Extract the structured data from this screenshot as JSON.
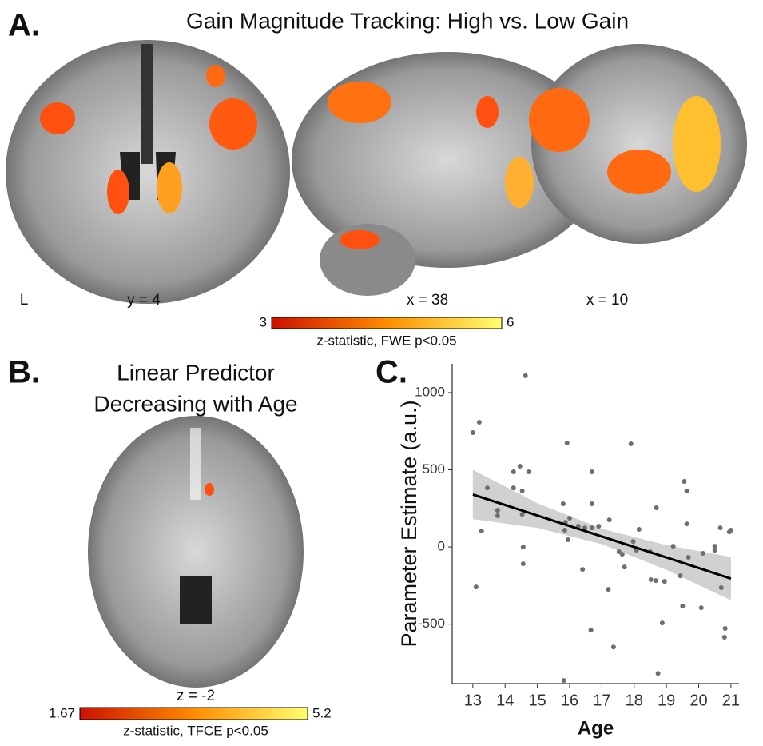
{
  "panel_a": {
    "label": "A.",
    "title": "Gain Magnitude Tracking: High vs. Low Gain",
    "slice_labels": [
      "L",
      "y = 4",
      "x = 38",
      "x = 10"
    ],
    "colorbar": {
      "min": 3,
      "max": 6,
      "label": "z-statistic, FWE p<0.05"
    }
  },
  "panel_b": {
    "label": "B.",
    "title_lines": [
      "Linear Predictor",
      "Decreasing with Age"
    ],
    "slice_label": "z = -2",
    "colorbar": {
      "min": 1.67,
      "max": 5.2,
      "label": "z-statistic, TFCE p<0.05"
    }
  },
  "chart_data": {
    "type": "scatter",
    "panel_label": "C.",
    "x_label": "Age",
    "y_label": "Parameter Estimate (a.u.)",
    "xlim": [
      12.36,
      21.25
    ],
    "ylim": [
      -885,
      1186
    ],
    "xticks": [
      13,
      14,
      15,
      16,
      17,
      18,
      19,
      20,
      21
    ],
    "yticks": [
      -500,
      0,
      500,
      1000
    ],
    "grid": false,
    "series": [
      {
        "color": "#6e6e6e",
        "x": [
          13.0,
          13.2,
          13.1,
          13.27,
          13.45,
          13.77,
          13.77,
          14.26,
          14.26,
          14.46,
          14.53,
          14.53,
          14.56,
          14.56,
          14.63,
          14.73,
          15.8,
          15.87,
          15.85,
          15.95,
          16.0,
          15.92,
          15.82,
          16.27,
          16.47,
          16.4,
          16.69,
          16.69,
          16.69,
          16.66,
          16.9,
          17.2,
          17.23,
          17.36,
          17.53,
          17.63,
          17.7,
          17.9,
          17.97,
          18.07,
          18.15,
          18.5,
          18.52,
          18.67,
          18.74,
          18.69,
          18.94,
          18.87,
          19.21,
          19.43,
          19.5,
          19.55,
          19.63,
          19.63,
          19.68,
          20.08,
          20.13,
          20.5,
          20.67,
          20.7,
          20.82,
          20.8,
          20.95,
          21.0,
          20.5
        ],
        "values": [
          741,
          808,
          -259,
          104,
          383,
          238,
          202,
          487,
          383,
          523,
          363,
          212,
          0,
          -109,
          1109,
          487,
          280,
          160,
          109,
          47,
          187,
          674,
          -865,
          135,
          124,
          -145,
          280,
          124,
          487,
          -539,
          135,
          -275,
          176,
          -648,
          -31,
          -47,
          -130,
          668,
          36,
          -21,
          114,
          -31,
          -212,
          -218,
          -819,
          254,
          -223,
          -492,
          5,
          -187,
          -383,
          425,
          363,
          150,
          -67,
          -394,
          -41,
          5,
          124,
          -264,
          -528,
          -585,
          98,
          109,
          -21
        ]
      }
    ],
    "fit": {
      "color": "#000000",
      "band_color": "#bdbdbd",
      "x": [
        13,
        15,
        17,
        19,
        21
      ],
      "values": [
        340,
        204,
        68,
        -68,
        -205
      ],
      "lower": [
        180,
        124,
        18,
        -148,
        -345
      ],
      "upper": [
        500,
        284,
        118,
        12,
        -65
      ]
    }
  }
}
